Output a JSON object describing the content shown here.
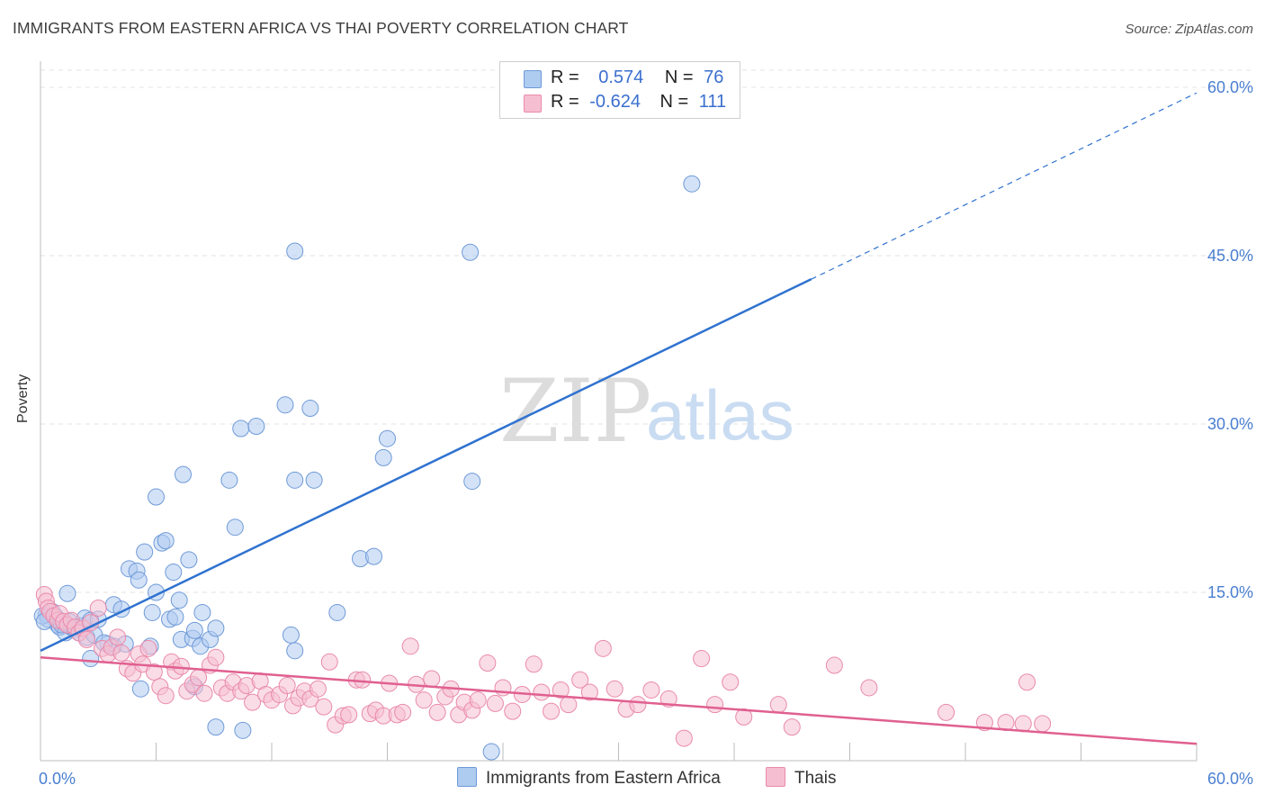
{
  "title": "IMMIGRANTS FROM EASTERN AFRICA VS THAI POVERTY CORRELATION CHART",
  "source": "Source: ZipAtlas.com",
  "watermark": {
    "zip": "ZIP",
    "atlas": "atlas"
  },
  "colors": {
    "blue_fill": "#aecbf0",
    "blue_stroke": "#6f9ad8",
    "blue_line": "#2f72d0",
    "pink_fill": "#f6bfd1",
    "pink_stroke": "#e98aab",
    "pink_line": "#e0608f",
    "tick_text": "#4a7fd1",
    "grid": "#e3e3e3"
  },
  "legend": {
    "rows": [
      {
        "r_label": "R =",
        "r_value": "0.574",
        "n_label": "N =",
        "n_value": "76",
        "color": "#aecbf0",
        "border": "#6f9ad8"
      },
      {
        "r_label": "R =",
        "r_value": "-0.624",
        "n_label": "N =",
        "n_value": "111",
        "color": "#f6bfd1",
        "border": "#e98aab"
      }
    ]
  },
  "bottom_legend": [
    {
      "label": "Immigrants from Eastern Africa",
      "color": "#aecbf0",
      "border": "#6f9ad8"
    },
    {
      "label": "Thais",
      "color": "#f6bfd1",
      "border": "#e98aab"
    }
  ],
  "chart_data": {
    "type": "scatter",
    "xlabel": "",
    "ylabel": "Poverty",
    "xlim": [
      0,
      60
    ],
    "ylim": [
      0,
      60
    ],
    "x_tick_labels": [
      {
        "value": 0,
        "label": "0.0%"
      },
      {
        "value": 60,
        "label": "60.0%"
      }
    ],
    "y_tick_labels": [
      {
        "value": 15,
        "label": "15.0%"
      },
      {
        "value": 30,
        "label": "30.0%"
      },
      {
        "value": 45,
        "label": "45.0%"
      },
      {
        "value": 60,
        "label": "60.0%"
      }
    ],
    "grid": "horizontal dashed",
    "series": [
      {
        "name": "Immigrants from Eastern Africa",
        "color": "#aecbf0",
        "trend": {
          "x": [
            0,
            40
          ],
          "y": [
            9.8,
            42.9
          ],
          "dashed_extension_to": [
            60,
            59.5
          ]
        },
        "points": [
          [
            0.3,
            13.0
          ],
          [
            0.4,
            12.6
          ],
          [
            0.6,
            13.3
          ],
          [
            0.8,
            12.8
          ],
          [
            0.9,
            12.1
          ],
          [
            1.0,
            11.9
          ],
          [
            1.2,
            12.2
          ],
          [
            1.3,
            11.4
          ],
          [
            1.5,
            12.4
          ],
          [
            1.6,
            11.9
          ],
          [
            1.8,
            11.7
          ],
          [
            2.0,
            11.4
          ],
          [
            2.1,
            12.0
          ],
          [
            2.3,
            12.7
          ],
          [
            2.4,
            11.0
          ],
          [
            2.6,
            12.5
          ],
          [
            1.4,
            14.9
          ],
          [
            2.6,
            9.1
          ],
          [
            3.8,
            10.2
          ],
          [
            3.5,
            10.4
          ],
          [
            3.8,
            13.9
          ],
          [
            4.2,
            13.5
          ],
          [
            4.4,
            10.4
          ],
          [
            4.6,
            17.1
          ],
          [
            5.0,
            16.9
          ],
          [
            5.1,
            16.1
          ],
          [
            5.4,
            18.6
          ],
          [
            5.7,
            10.2
          ],
          [
            5.8,
            13.2
          ],
          [
            6.0,
            15.0
          ],
          [
            6.0,
            23.5
          ],
          [
            6.3,
            19.4
          ],
          [
            6.5,
            19.6
          ],
          [
            6.7,
            12.6
          ],
          [
            6.9,
            16.8
          ],
          [
            7.0,
            12.8
          ],
          [
            7.2,
            14.3
          ],
          [
            7.3,
            10.8
          ],
          [
            7.4,
            25.5
          ],
          [
            7.7,
            17.9
          ],
          [
            7.9,
            10.9
          ],
          [
            8.0,
            11.6
          ],
          [
            8.3,
            10.2
          ],
          [
            8.4,
            13.2
          ],
          [
            8.8,
            10.8
          ],
          [
            9.1,
            11.8
          ],
          [
            9.8,
            25.0
          ],
          [
            10.1,
            20.8
          ],
          [
            10.4,
            29.6
          ],
          [
            11.2,
            29.8
          ],
          [
            12.7,
            31.7
          ],
          [
            13.0,
            11.2
          ],
          [
            13.2,
            9.8
          ],
          [
            13.2,
            25.0
          ],
          [
            14.0,
            31.4
          ],
          [
            14.2,
            25.0
          ],
          [
            15.4,
            13.2
          ],
          [
            16.6,
            18.0
          ],
          [
            17.3,
            18.2
          ],
          [
            17.8,
            27.0
          ],
          [
            18.0,
            28.7
          ],
          [
            22.4,
            24.9
          ],
          [
            13.2,
            45.4
          ],
          [
            22.3,
            45.3
          ],
          [
            33.8,
            51.4
          ],
          [
            0.1,
            12.9
          ],
          [
            0.2,
            12.4
          ],
          [
            1.1,
            12.1
          ],
          [
            2.8,
            11.2
          ],
          [
            3.0,
            12.6
          ],
          [
            3.3,
            10.5
          ],
          [
            5.2,
            6.4
          ],
          [
            9.1,
            3.0
          ],
          [
            10.5,
            2.7
          ],
          [
            23.4,
            0.8
          ],
          [
            8.0,
            6.6
          ]
        ]
      },
      {
        "name": "Thais",
        "color": "#f6bfd1",
        "trend": {
          "x": [
            0,
            60
          ],
          "y": [
            9.2,
            1.5
          ]
        },
        "points": [
          [
            0.2,
            14.8
          ],
          [
            0.3,
            14.2
          ],
          [
            0.4,
            13.6
          ],
          [
            0.5,
            13.3
          ],
          [
            0.7,
            12.9
          ],
          [
            0.9,
            12.5
          ],
          [
            1.0,
            13.1
          ],
          [
            1.2,
            12.4
          ],
          [
            1.4,
            12.1
          ],
          [
            1.6,
            12.5
          ],
          [
            1.8,
            11.9
          ],
          [
            2.0,
            11.4
          ],
          [
            2.2,
            11.8
          ],
          [
            2.4,
            10.8
          ],
          [
            2.6,
            12.3
          ],
          [
            3.0,
            13.6
          ],
          [
            3.2,
            10.0
          ],
          [
            3.5,
            9.5
          ],
          [
            3.7,
            10.1
          ],
          [
            4.0,
            11.0
          ],
          [
            4.2,
            9.6
          ],
          [
            4.5,
            8.2
          ],
          [
            4.8,
            7.8
          ],
          [
            5.1,
            9.5
          ],
          [
            5.3,
            8.6
          ],
          [
            5.6,
            10.0
          ],
          [
            5.9,
            7.9
          ],
          [
            6.2,
            6.6
          ],
          [
            6.5,
            5.8
          ],
          [
            6.8,
            8.8
          ],
          [
            7.0,
            8.0
          ],
          [
            7.3,
            8.4
          ],
          [
            7.6,
            6.2
          ],
          [
            7.9,
            6.8
          ],
          [
            8.2,
            7.4
          ],
          [
            8.5,
            6.0
          ],
          [
            8.8,
            8.5
          ],
          [
            9.1,
            9.2
          ],
          [
            9.4,
            6.5
          ],
          [
            9.7,
            6.0
          ],
          [
            10.0,
            7.0
          ],
          [
            10.4,
            6.2
          ],
          [
            10.7,
            6.7
          ],
          [
            11.0,
            5.2
          ],
          [
            11.4,
            7.1
          ],
          [
            11.7,
            5.9
          ],
          [
            12.0,
            5.4
          ],
          [
            12.4,
            5.9
          ],
          [
            12.8,
            6.7
          ],
          [
            13.1,
            4.9
          ],
          [
            13.4,
            5.6
          ],
          [
            13.7,
            6.2
          ],
          [
            14.0,
            5.5
          ],
          [
            14.4,
            6.4
          ],
          [
            14.7,
            4.8
          ],
          [
            15.0,
            8.8
          ],
          [
            15.3,
            3.2
          ],
          [
            15.7,
            4.0
          ],
          [
            16.0,
            4.1
          ],
          [
            16.4,
            7.2
          ],
          [
            16.7,
            7.2
          ],
          [
            17.1,
            4.2
          ],
          [
            17.4,
            4.5
          ],
          [
            17.8,
            4.0
          ],
          [
            18.1,
            6.9
          ],
          [
            18.5,
            4.1
          ],
          [
            18.8,
            4.3
          ],
          [
            19.2,
            10.2
          ],
          [
            19.5,
            6.8
          ],
          [
            19.9,
            5.4
          ],
          [
            20.3,
            7.3
          ],
          [
            20.6,
            4.3
          ],
          [
            21.0,
            5.7
          ],
          [
            21.3,
            6.4
          ],
          [
            21.7,
            4.1
          ],
          [
            22.0,
            5.2
          ],
          [
            22.4,
            4.5
          ],
          [
            22.7,
            5.4
          ],
          [
            23.2,
            8.7
          ],
          [
            23.6,
            5.1
          ],
          [
            24.0,
            6.5
          ],
          [
            24.5,
            4.4
          ],
          [
            25.0,
            5.9
          ],
          [
            25.6,
            8.6
          ],
          [
            26.0,
            6.1
          ],
          [
            26.5,
            4.4
          ],
          [
            27.0,
            6.3
          ],
          [
            27.4,
            5.0
          ],
          [
            28.0,
            7.2
          ],
          [
            28.5,
            6.1
          ],
          [
            29.2,
            10.0
          ],
          [
            29.8,
            6.4
          ],
          [
            30.4,
            4.6
          ],
          [
            31.0,
            5.0
          ],
          [
            31.7,
            6.3
          ],
          [
            32.6,
            5.5
          ],
          [
            33.4,
            2.0
          ],
          [
            34.3,
            9.1
          ],
          [
            35.0,
            5.0
          ],
          [
            35.8,
            7.0
          ],
          [
            36.5,
            3.9
          ],
          [
            38.3,
            5.0
          ],
          [
            39.0,
            3.0
          ],
          [
            41.2,
            8.5
          ],
          [
            43.0,
            6.5
          ],
          [
            47.0,
            4.3
          ],
          [
            49.0,
            3.4
          ],
          [
            50.1,
            3.4
          ],
          [
            51.2,
            7.0
          ],
          [
            51.0,
            3.3
          ],
          [
            52.0,
            3.3
          ]
        ]
      }
    ]
  }
}
